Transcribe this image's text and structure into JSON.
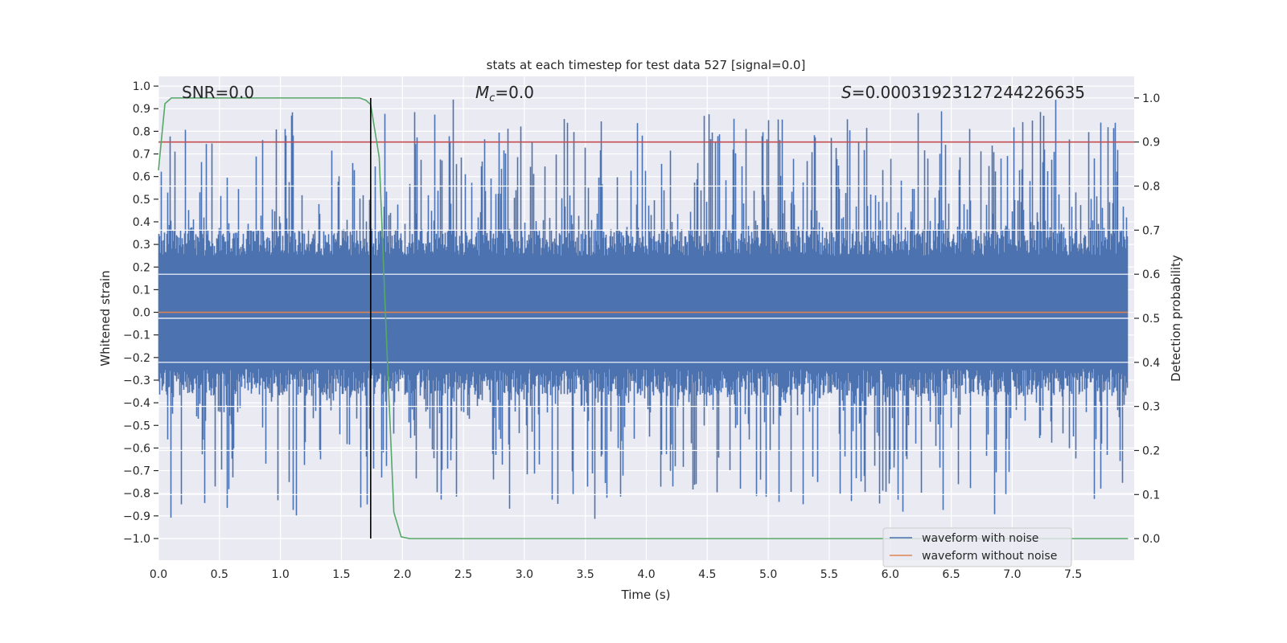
{
  "chart_data": {
    "type": "line",
    "title": "stats at each timestep for test data 527 [signal=0.0]",
    "xlabel": "Time (s)",
    "ylabel": "Whitened strain",
    "ylabel_right": "Detection probability",
    "xlim": [
      0,
      8
    ],
    "ylim": [
      -1.096,
      1.043
    ],
    "ylim_right": [
      -0.049,
      1.049
    ],
    "xticks": [
      "0.0",
      "0.5",
      "1.0",
      "1.5",
      "2.0",
      "2.5",
      "3.0",
      "3.5",
      "4.0",
      "4.5",
      "5.0",
      "5.5",
      "6.0",
      "6.5",
      "7.0",
      "7.5"
    ],
    "yticks": [
      "1.0",
      "0.9",
      "0.8",
      "0.7",
      "0.6",
      "0.5",
      "0.4",
      "0.3",
      "0.2",
      "0.1",
      "0.0",
      "−0.1",
      "−0.2",
      "−0.3",
      "−0.4",
      "−0.5",
      "−0.6",
      "−0.7",
      "−0.8",
      "−0.9",
      "−1.0"
    ],
    "yticks_right": [
      "1.0",
      "0.9",
      "0.8",
      "0.7",
      "0.6",
      "0.5",
      "0.4",
      "0.3",
      "0.2",
      "0.1",
      "0.0"
    ],
    "annotations": {
      "snr": "SNR=0.0",
      "mc_sym": "M",
      "mc_sub": "c",
      "mc_val": "=0.0",
      "s_sym": "S",
      "s_val": "=0.00031923127244226635"
    },
    "legend": {
      "placement": "lower-right",
      "entries": [
        "waveform with noise",
        "waveform without noise"
      ]
    },
    "series": [
      {
        "name": "waveform with noise",
        "axis": "left",
        "color": "#4c72b0",
        "kind": "noise",
        "typical_abs": 0.35,
        "max_abs": 0.97
      },
      {
        "name": "waveform without noise",
        "axis": "left",
        "color": "#dd8452",
        "value": 0.0
      },
      {
        "name": "detection probability",
        "axis": "right",
        "color": "#55a868",
        "x": [
          0,
          0.053,
          0.106,
          1.65,
          1.7,
          1.74,
          1.81,
          1.87,
          1.93,
          1.99,
          2.06,
          7.95
        ],
        "y": [
          0.836,
          0.987,
          1.0,
          1.0,
          0.995,
          0.985,
          0.865,
          0.45,
          0.06,
          0.004,
          0.0,
          0.0
        ]
      },
      {
        "name": "threshold",
        "axis": "right",
        "color": "#c44e52",
        "value": 0.9
      },
      {
        "name": "detection time",
        "axis": "x",
        "color": "#000000",
        "value": 1.74
      }
    ]
  }
}
